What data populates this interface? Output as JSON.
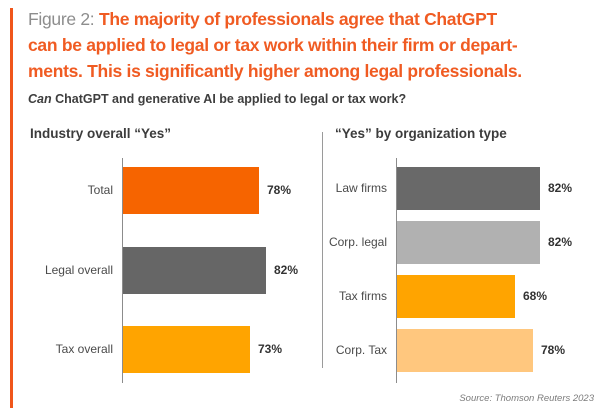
{
  "figure": {
    "label_prefix": "Figure 2:",
    "title_line1": "The majority of professionals agree that ChatGPT",
    "title_line2": "can be applied to legal or tax work within their firm or depart-",
    "title_line3": "ments. This is significantly higher among legal professionals.",
    "question_italic": "Can",
    "question_rest": "ChatGPT and generative AI be applied to legal or tax work?",
    "source": "Source: Thomson Reuters 2023"
  },
  "colors": {
    "accent_stripe": "#F0561B",
    "title_orange": "#F05B22",
    "figure_label_gray": "#8D8D8D",
    "question_dark": "#3E3E3E",
    "heading_dark": "#3C3C3C",
    "category_gray": "#4A4A4A",
    "value_dark": "#333333",
    "axis_gray": "#8C8C8C",
    "divider_gray": "#9A9A9A",
    "source_gray": "#7C7C7C"
  },
  "chart_data": [
    {
      "type": "bar",
      "orientation": "horizontal",
      "title": "Industry overall “Yes”",
      "categories": [
        "Total",
        "Legal overall",
        "Tax overall"
      ],
      "values": [
        78,
        82,
        73
      ],
      "value_labels": [
        "78%",
        "82%",
        "73%"
      ],
      "bar_colors": [
        "#F66400",
        "#666666",
        "#FFA400"
      ],
      "xlim": [
        0,
        100
      ],
      "unit": "percent",
      "grid": false,
      "legend": false
    },
    {
      "type": "bar",
      "orientation": "horizontal",
      "title": "“Yes” by organization type",
      "categories": [
        "Law firms",
        "Corp. legal",
        "Tax firms",
        "Corp. Tax"
      ],
      "values": [
        82,
        82,
        68,
        78
      ],
      "value_labels": [
        "82%",
        "82%",
        "68%",
        "78%"
      ],
      "bar_colors": [
        "#696969",
        "#B1B1B1",
        "#FFA400",
        "#FFC77E"
      ],
      "xlim": [
        0,
        100
      ],
      "unit": "percent",
      "grid": false,
      "legend": false
    }
  ]
}
